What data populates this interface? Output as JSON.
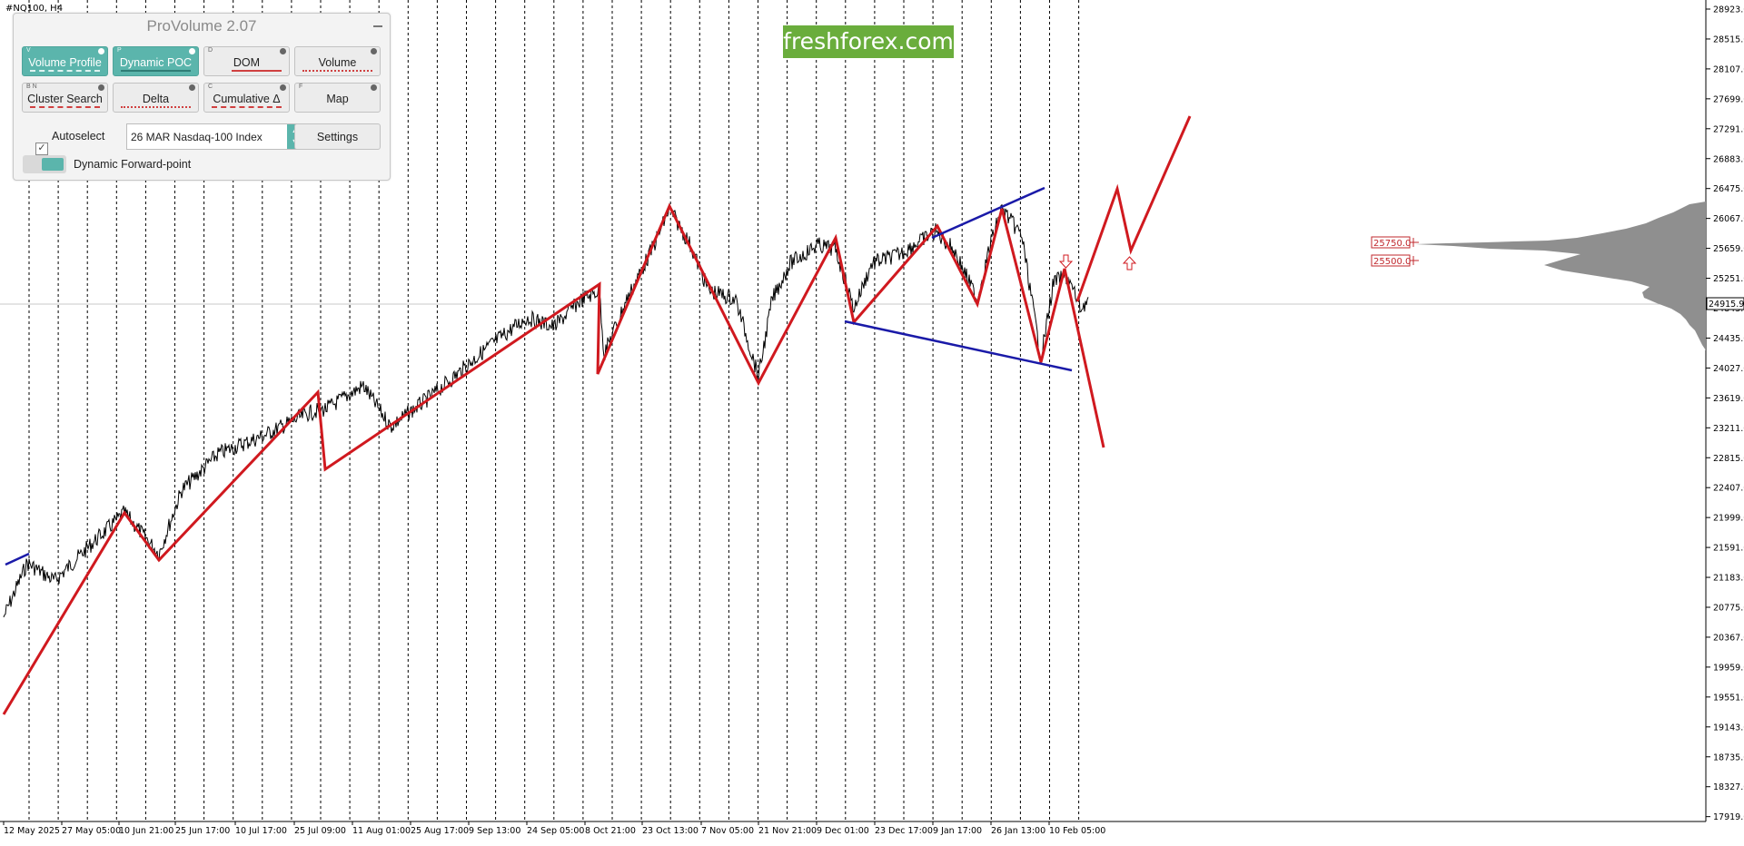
{
  "symbol": "#NQ100, H4",
  "brand": "freshforex.com",
  "provolume": {
    "title": "ProVolume 2.07",
    "buttons": [
      {
        "key": "V",
        "label": "Volume Profile",
        "active": true
      },
      {
        "key": "P",
        "label": "Dynamic POC",
        "active": true
      },
      {
        "key": "D",
        "label": "DOM",
        "active": false
      },
      {
        "key": "",
        "label": "Volume",
        "active": false
      },
      {
        "key": "B N",
        "label": "Cluster Search",
        "active": false
      },
      {
        "key": "",
        "label": "Delta",
        "active": false
      },
      {
        "key": "C",
        "label": "Cumulative Δ",
        "active": false
      },
      {
        "key": "F",
        "label": "Map",
        "active": false
      }
    ],
    "autoselect_label": "Autoselect",
    "autoselect_checked": true,
    "instrument": "26 MAR Nasdaq-100 Index",
    "settings_label": "Settings",
    "forward_point_label": "Dynamic Forward-point"
  },
  "price_axis": [
    "28923.0",
    "28515.0",
    "28107.0",
    "27699.0",
    "27291.0",
    "26883.0",
    "26475.0",
    "26067.0",
    "25659.0",
    "25251.0",
    "24843.0",
    "24435.0",
    "24027.0",
    "23619.0",
    "23211.0",
    "22815.0",
    "22407.0",
    "21999.0",
    "21591.0",
    "21183.0",
    "20775.0",
    "20367.0",
    "19959.0",
    "19551.0",
    "19143.0",
    "18735.0",
    "18327.0",
    "17919.0"
  ],
  "current_price": "24915.9",
  "levels": [
    "25750.0",
    "25500.0"
  ],
  "time_axis": [
    "12 May 2025",
    "27 May 05:00",
    "10 Jun 21:00",
    "25 Jun 17:00",
    "10 Jul 17:00",
    "25 Jul 09:00",
    "11 Aug 01:00",
    "25 Aug 17:00",
    "9 Sep 13:00",
    "24 Sep 05:00",
    "8 Oct 21:00",
    "23 Oct 13:00",
    "7 Nov 05:00",
    "21 Nov 21:00",
    "9 Dec 01:00",
    "23 Dec 17:00",
    "9 Jan 17:00",
    "26 Jan 13:00",
    "10 Feb 05:00"
  ],
  "colors": {
    "zigzag": "#d0191f",
    "channel": "#1a1aa8",
    "profile": "#8f8f8f",
    "panel_accent": "#5bb5ac",
    "brand_bg": "#6aad3c"
  }
}
